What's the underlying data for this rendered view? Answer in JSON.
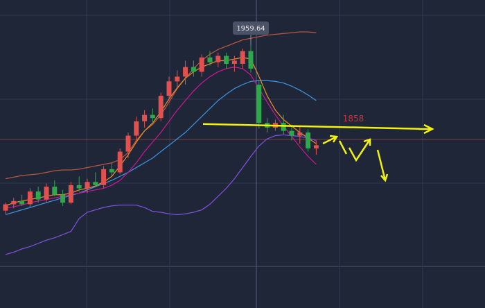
{
  "chart_data": {
    "type": "candlestick",
    "categories": [
      null,
      null,
      null,
      null,
      null,
      null,
      null,
      null,
      null,
      null,
      null,
      null,
      null,
      null,
      null,
      null,
      null,
      null,
      null,
      null,
      null,
      null,
      null,
      null,
      null,
      null,
      null,
      null,
      null,
      null,
      null,
      null,
      null,
      null,
      null,
      null,
      null,
      null,
      null
    ],
    "open": [
      1752,
      1760,
      1764,
      1760,
      1776,
      1766,
      1782,
      1772,
      1762,
      1784,
      1780,
      1788,
      1784,
      1804,
      1800,
      1826,
      1846,
      1864,
      1872,
      1868,
      1896,
      1914,
      1920,
      1932,
      1926,
      1944,
      1938,
      1946,
      1936,
      1936,
      1952,
      1910,
      1862,
      1856,
      1862,
      1852,
      1846,
      1850,
      1830
    ],
    "high": [
      1762,
      1768,
      1772,
      1780,
      1782,
      1786,
      1790,
      1778,
      1788,
      1795,
      1792,
      1800,
      1808,
      1812,
      1830,
      1850,
      1870,
      1878,
      1880,
      1900,
      1920,
      1928,
      1940,
      1940,
      1948,
      1952,
      1950,
      1950,
      1946,
      1955,
      1959.64,
      1915,
      1868,
      1866,
      1872,
      1860,
      1858,
      1854,
      1840
    ],
    "low": [
      1748,
      1755,
      1758,
      1756,
      1762,
      1762,
      1770,
      1758,
      1760,
      1776,
      1774,
      1782,
      1780,
      1796,
      1798,
      1818,
      1840,
      1856,
      1862,
      1864,
      1890,
      1906,
      1910,
      1920,
      1920,
      1934,
      1932,
      1930,
      1926,
      1930,
      1925,
      1855,
      1850,
      1852,
      1848,
      1840,
      1836,
      1826,
      1822
    ],
    "close": [
      1760,
      1764,
      1760,
      1776,
      1766,
      1782,
      1772,
      1762,
      1784,
      1780,
      1788,
      1784,
      1804,
      1800,
      1826,
      1846,
      1864,
      1872,
      1868,
      1896,
      1914,
      1920,
      1932,
      1926,
      1944,
      1938,
      1946,
      1936,
      1940,
      1952,
      1930,
      1862,
      1856,
      1862,
      1852,
      1846,
      1850,
      1830,
      1834
    ],
    "up_color": "#e0514f",
    "down_color": "#2ea84a",
    "overlays": [
      {
        "color": "#b5563e",
        "values": [
          1792,
          1794,
          1796,
          1797,
          1798,
          1800,
          1802,
          1803,
          1803,
          1804,
          1806,
          1808,
          1810,
          1812,
          1816,
          1825,
          1840,
          1852,
          1860,
          1872,
          1888,
          1905,
          1918,
          1930,
          1940,
          1948,
          1954,
          1958,
          1962,
          1966,
          1968,
          1970,
          1972,
          1973,
          1974,
          1975,
          1976,
          1976,
          1975
        ]
      },
      {
        "color": "#7b4fd6",
        "values": [
          1697,
          1700,
          1704,
          1707,
          1711,
          1715,
          1718,
          1722,
          1726,
          1742,
          1750,
          1753,
          1756,
          1758,
          1759,
          1759,
          1759,
          1756,
          1751,
          1750,
          1748,
          1747,
          1748,
          1750,
          1753,
          1760,
          1770,
          1780,
          1792,
          1806,
          1820,
          1833,
          1842,
          1846,
          1847,
          1846,
          1845,
          1843,
          1840
        ]
      },
      {
        "color": "#3f8fd8",
        "values": [
          1747,
          1750,
          1753,
          1756,
          1759,
          1762,
          1765,
          1768,
          1771,
          1774,
          1778,
          1782,
          1786,
          1790,
          1795,
          1800,
          1806,
          1812,
          1818,
          1826,
          1834,
          1842,
          1850,
          1860,
          1870,
          1880,
          1890,
          1898,
          1905,
          1910,
          1914,
          1915,
          1915,
          1914,
          1912,
          1908,
          1903,
          1897,
          1890
        ]
      },
      {
        "color": "#c2188f",
        "values": [
          1755,
          1757,
          1759,
          1762,
          1764,
          1766,
          1768,
          1770,
          1772,
          1774,
          1776,
          1778,
          1780,
          1784,
          1790,
          1800,
          1812,
          1826,
          1838,
          1850,
          1864,
          1878,
          1890,
          1902,
          1912,
          1920,
          1926,
          1930,
          1932,
          1930,
          1922,
          1905,
          1888,
          1872,
          1858,
          1845,
          1832,
          1820,
          1810
        ]
      },
      {
        "color": "#e08a2a",
        "values": [
          1758,
          1762,
          1764,
          1766,
          1768,
          1770,
          1772,
          1772,
          1774,
          1778,
          1780,
          1783,
          1788,
          1795,
          1808,
          1822,
          1838,
          1852,
          1862,
          1876,
          1892,
          1906,
          1918,
          1926,
          1932,
          1936,
          1940,
          1940,
          1942,
          1944,
          1942,
          1920,
          1896,
          1878,
          1866,
          1858,
          1850,
          1843,
          1836
        ]
      }
    ],
    "ylim": [
      1630,
      2016
    ],
    "level": {
      "value": 1858,
      "color": "#f2f20a",
      "label_color": "#d0303a"
    },
    "high_label_index": 30
  }
}
